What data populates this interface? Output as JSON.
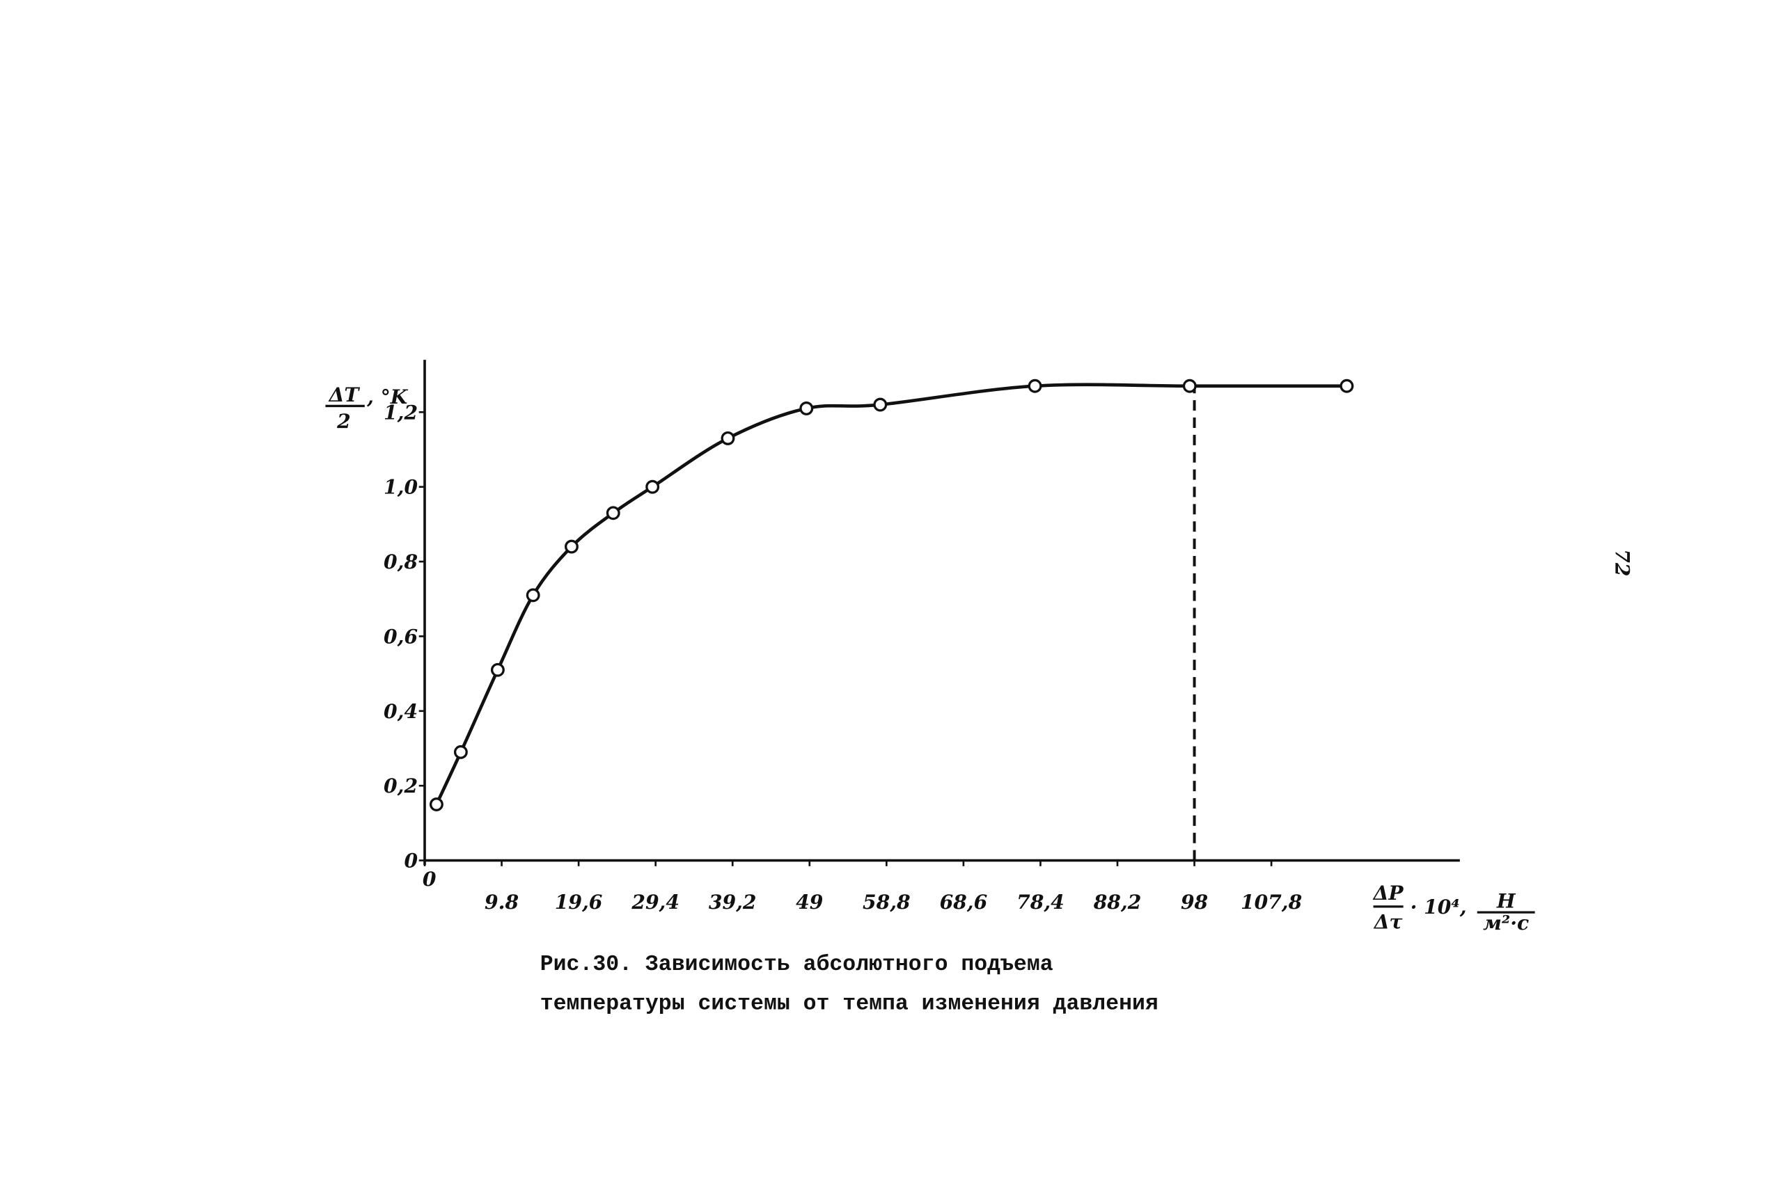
{
  "chart_data": {
    "type": "line",
    "markers": true,
    "x": [
      1.5,
      4.6,
      9.3,
      13.8,
      18.7,
      24.0,
      29.0,
      38.6,
      48.6,
      58.0,
      77.7,
      97.4,
      117.4
    ],
    "series": [
      {
        "color": "#111111",
        "values": [
          0.15,
          0.29,
          0.51,
          0.71,
          0.84,
          0.93,
          1.0,
          1.13,
          1.21,
          1.22,
          1.27,
          1.27,
          1.27
        ]
      }
    ],
    "xlim": [
      0,
      131.8
    ],
    "ylim": [
      0,
      1.34
    ],
    "xticks": [
      {
        "value": 0,
        "label": "0"
      },
      {
        "value": 9.8,
        "label": "9.8"
      },
      {
        "value": 19.6,
        "label": "19,6"
      },
      {
        "value": 29.4,
        "label": "29,4"
      },
      {
        "value": 39.2,
        "label": "39,2"
      },
      {
        "value": 49,
        "label": "49"
      },
      {
        "value": 58.8,
        "label": "58,8"
      },
      {
        "value": 68.6,
        "label": "68,6"
      },
      {
        "value": 78.4,
        "label": "78,4"
      },
      {
        "value": 88.2,
        "label": "88,2"
      },
      {
        "value": 98,
        "label": "98"
      },
      {
        "value": 107.8,
        "label": "107,8"
      }
    ],
    "yticks": [
      {
        "value": 0,
        "label": "0"
      },
      {
        "value": 0.2,
        "label": "0,2"
      },
      {
        "value": 0.4,
        "label": "0,4"
      },
      {
        "value": 0.6,
        "label": "0,6"
      },
      {
        "value": 0.8,
        "label": "0,8"
      },
      {
        "value": 1.0,
        "label": "1,0"
      },
      {
        "value": 1.2,
        "label": "1,2"
      }
    ],
    "vline": 98,
    "ylabel": {
      "numerator": "ΔT",
      "denominator": "2",
      "unit": ", °K"
    },
    "xlabel": {
      "numerator": "ΔP",
      "denominator": "Δτ",
      "factor": "· 10⁴,",
      "unit_numerator": "Н",
      "unit_denominator": "м²·с"
    },
    "caption": [
      "Рис.30. Зависимость абсолютного подъема",
      "температуры системы от темпа изменения давления"
    ],
    "page_number": "72"
  }
}
